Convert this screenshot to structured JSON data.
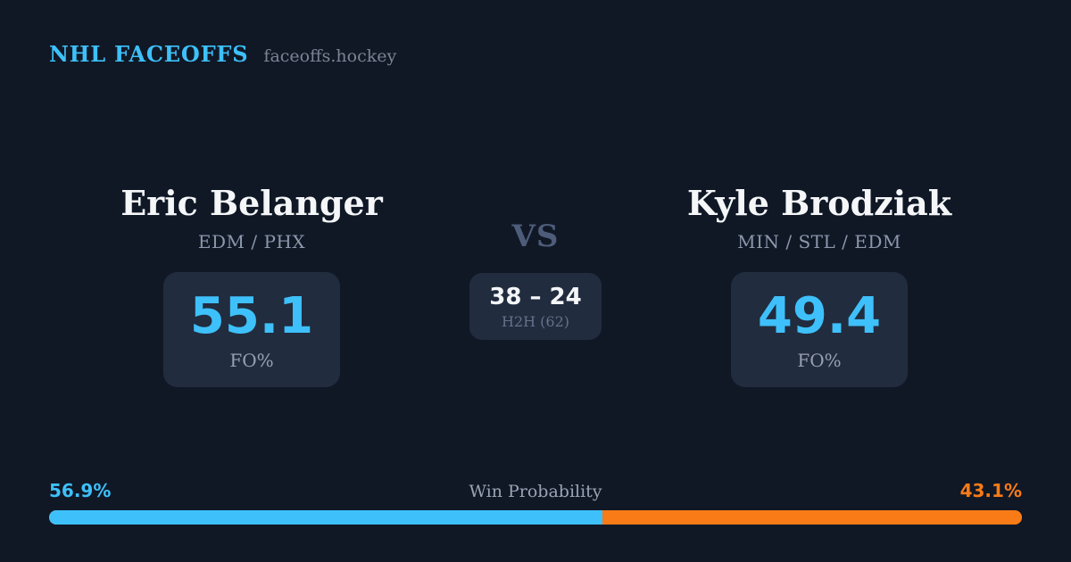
{
  "header": {
    "title": "NHL FACEOFFS",
    "site": "faceoffs.hockey"
  },
  "players": {
    "left": {
      "name": "Eric Belanger",
      "teams": "EDM / PHX",
      "fo_pct": "55.1",
      "fo_label": "FO%"
    },
    "right": {
      "name": "Kyle Brodziak",
      "teams": "MIN / STL / EDM",
      "fo_pct": "49.4",
      "fo_label": "FO%"
    }
  },
  "matchup": {
    "vs_label": "VS",
    "h2h_score": "38 – 24",
    "h2h_label": "H2H (62)"
  },
  "win_probability": {
    "label": "Win Probability",
    "left_pct_label": "56.9%",
    "right_pct_label": "43.1%",
    "left_value": 56.9,
    "right_value": 43.1
  },
  "colors": {
    "background": "#101826",
    "box_background": "#212c3e",
    "accent_blue": "#3ec0fa",
    "accent_orange": "#f97b17"
  },
  "chart_data": {
    "type": "bar",
    "title": "Win Probability",
    "categories": [
      "Eric Belanger",
      "Kyle Brodziak"
    ],
    "values": [
      56.9,
      43.1
    ],
    "unit": "%",
    "xlabel": "",
    "ylabel": "",
    "layout": "single horizontal stacked proportion bar, blue (left player) vs orange (right player), labels above ends",
    "related_stats": {
      "faceoff_pct": {
        "Eric Belanger": 55.1,
        "Kyle Brodziak": 49.4
      },
      "head_to_head": {
        "score": "38 – 24",
        "total": 62
      }
    }
  }
}
